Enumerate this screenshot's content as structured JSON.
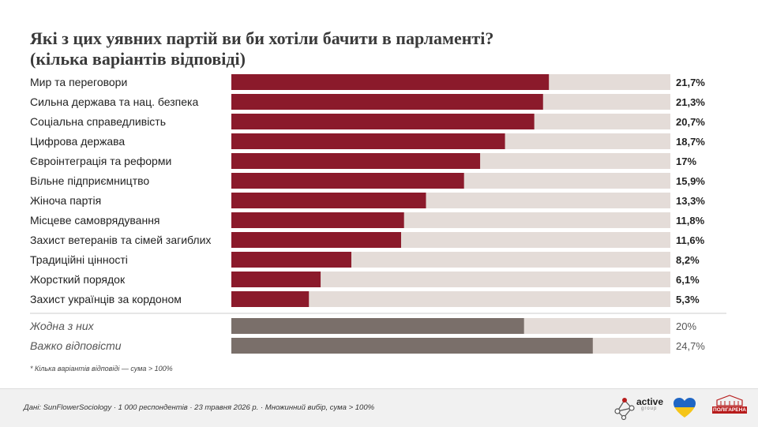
{
  "title_line1": "Які з цих уявних партій ви би хотіли бачити в парламенті?",
  "title_line2": "(кілька варіантів відповіді)",
  "footnote": "* Кілька варіантів відповіді — сума > 100%",
  "source": "Дані: SunFlowerSociology · 1 000 респондентів · 23 травня 2026 р. · Множинний вибір, сума > 100%",
  "logos": {
    "active_word": "active",
    "active_sub": "group",
    "polyarena": "ПОЛІГАРЕНА"
  },
  "colors": {
    "bar_main": "#8b1a2b",
    "bar_other": "#7a6f6a",
    "track": "#e4dcd8",
    "label_main": "#222222",
    "label_other": "#555555"
  },
  "chart_data": {
    "type": "bar",
    "orientation": "horizontal",
    "xlim": [
      0,
      30
    ],
    "categories": [
      "Мир та переговори",
      "Сильна держава та нац. безпека",
      "Соціальна справедливість",
      "Цифрова держава",
      "Євроінтеграція та реформи",
      "Вільне підприємництво",
      "Жіноча партія",
      "Місцеве самоврядування",
      "Захист ветеранів та сімей загиблих",
      "Традиційні цінності",
      "Жорсткий порядок",
      "Захист українців за кордоном"
    ],
    "values": [
      21.7,
      21.3,
      20.7,
      18.7,
      17,
      15.9,
      13.3,
      11.8,
      11.6,
      8.2,
      6.1,
      5.3
    ],
    "value_labels": [
      "21,7%",
      "21,3%",
      "20,7%",
      "18,7%",
      "17%",
      "15,9%",
      "13,3%",
      "11,8%",
      "11,6%",
      "8,2%",
      "6,1%",
      "5,3%"
    ],
    "other_categories": [
      "Жодна з них",
      "Важко відповісти"
    ],
    "other_values": [
      20,
      24.7
    ],
    "other_value_labels": [
      "20%",
      "24,7%"
    ]
  }
}
